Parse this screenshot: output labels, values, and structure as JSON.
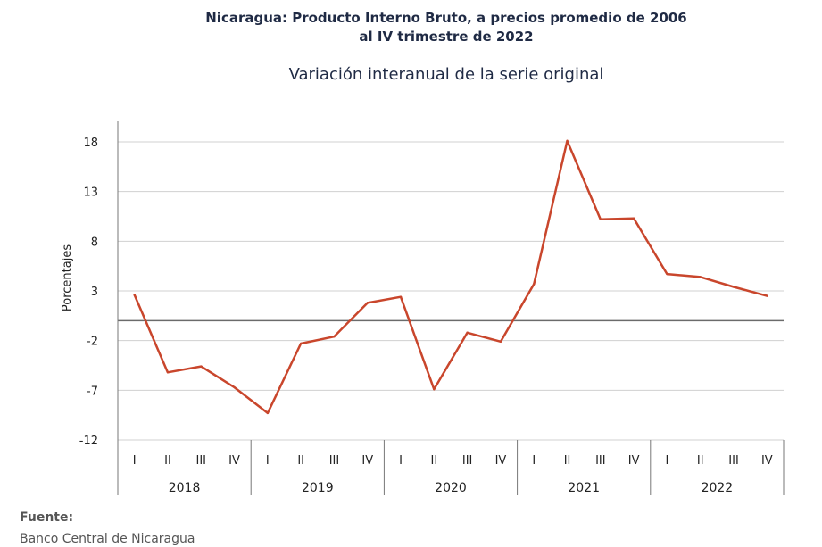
{
  "header": {
    "title_line1": "Nicaragua: Producto Interno Bruto, a precios promedio de 2006",
    "title_line2": "al IV trimestre de 2022",
    "subtitle": "Variación interanual de la serie original"
  },
  "footer": {
    "source_label": "Fuente:",
    "source_text": "Banco Central de Nicaragua"
  },
  "chart_data": {
    "type": "line",
    "title": "Nicaragua: Producto Interno Bruto, a precios promedio de 2006 al IV trimestre de 2022",
    "subtitle": "Variación interanual de la serie original",
    "ylabel": "Porcentajes",
    "xlabel": "",
    "ylim": [
      -12,
      20
    ],
    "yticks": [
      -12,
      -7,
      -2,
      3,
      8,
      13,
      18
    ],
    "grid": true,
    "legend": "none",
    "years": [
      "2018",
      "2019",
      "2020",
      "2021",
      "2022"
    ],
    "quarters": [
      "I",
      "II",
      "III",
      "IV"
    ],
    "categories": [
      "I 2018",
      "II 2018",
      "III 2018",
      "IV 2018",
      "I 2019",
      "II 2019",
      "III 2019",
      "IV 2019",
      "I 2020",
      "II 2020",
      "III 2020",
      "IV 2020",
      "I 2021",
      "II 2021",
      "III 2021",
      "IV 2021",
      "I 2022",
      "II 2022",
      "III 2022",
      "IV 2022"
    ],
    "series": [
      {
        "color": "#c9462c",
        "values": [
          2.6,
          -5.2,
          -4.6,
          -6.7,
          -9.3,
          -2.3,
          -1.6,
          1.8,
          2.4,
          -6.9,
          -1.2,
          -2.1,
          3.7,
          18.1,
          10.2,
          10.3,
          4.7,
          4.4,
          3.4,
          2.5
        ]
      }
    ]
  }
}
